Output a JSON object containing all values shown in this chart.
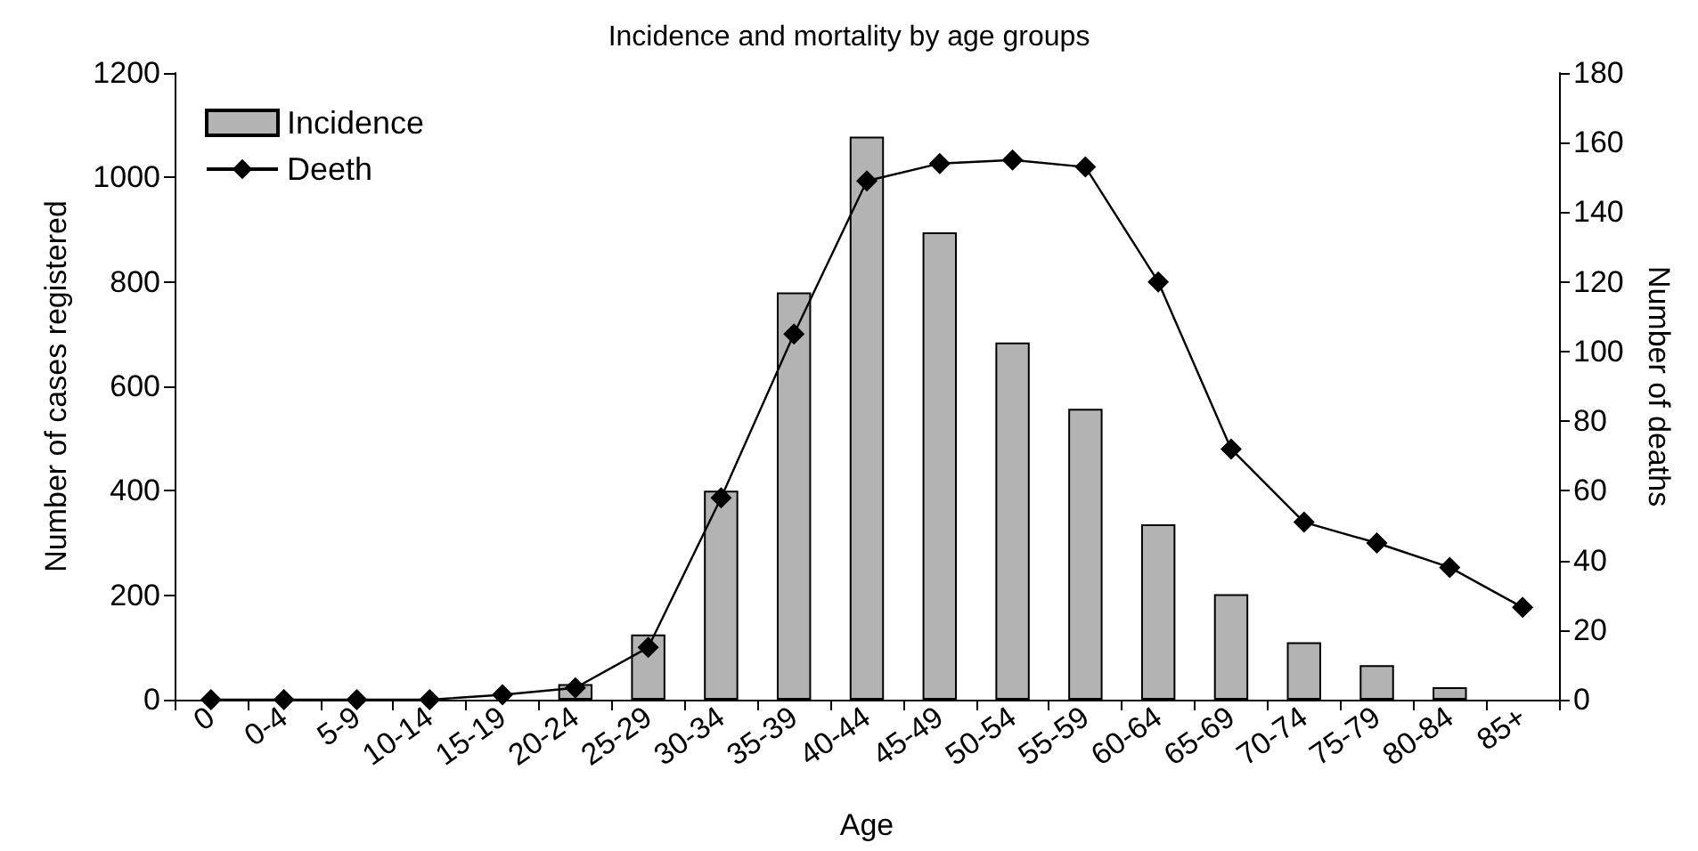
{
  "chart_data": {
    "type": "bar",
    "title": "Incidence and mortality by age groups",
    "xlabel": "Age",
    "ylabel": "Number of cases registered",
    "y2label": "Number of deaths",
    "categories": [
      "0",
      "0-4",
      "5-9",
      "10-14",
      "15-19",
      "20-24",
      "25-29",
      "30-34",
      "35-39",
      "40-44",
      "45-49",
      "50-54",
      "55-59",
      "60-64",
      "65-69",
      "70-74",
      "75-79",
      "80-84",
      "85+"
    ],
    "series": [
      {
        "name": "Incidence",
        "color": "#b3b3b3",
        "values": [
          0,
          0,
          0,
          0,
          0,
          30,
          125,
          400,
          780,
          1078,
          895,
          684,
          557,
          336,
          202,
          110,
          66,
          24,
          0
        ]
      },
      {
        "name": "Deeth",
        "type": "line",
        "axis": "y2",
        "color": "#000000",
        "values": [
          0,
          0,
          0,
          0,
          1.4,
          3.4,
          15,
          58,
          105,
          149,
          154,
          155,
          153,
          120,
          72,
          51,
          45,
          38,
          26.5
        ]
      }
    ],
    "ylim": [
      0,
      1200
    ],
    "yticks": [
      0,
      200,
      400,
      600,
      800,
      1000,
      1200
    ],
    "y2lim": [
      0,
      180
    ],
    "y2ticks": [
      0,
      20,
      40,
      60,
      80,
      100,
      120,
      140,
      160,
      180
    ],
    "grid": false,
    "legend": "top left",
    "marker": "diamond",
    "line_style": "solid"
  }
}
